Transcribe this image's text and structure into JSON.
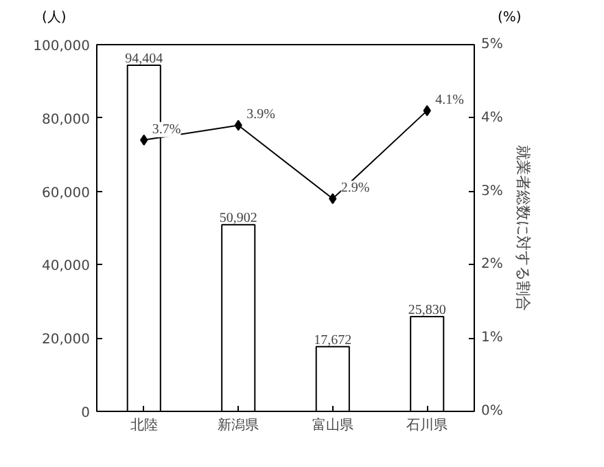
{
  "chart_data": {
    "type": "bar",
    "categories": [
      "北陸",
      "新潟県",
      "富山県",
      "石川県"
    ],
    "ylabel": "(人)",
    "y2label": "就業者総数に対する割合",
    "annotations": [
      "(%)"
    ],
    "series": [
      {
        "color": "#ffffff",
        "values": [
          94404,
          50902,
          17672,
          25830
        ],
        "value_labels": [
          "94,404",
          "50,902",
          "17,672",
          "25,830"
        ]
      },
      {
        "type": "line",
        "axis": "y2",
        "color": "#000000",
        "values": [
          3.7,
          3.9,
          2.9,
          4.1
        ],
        "value_labels": [
          "3.7%",
          "3.9%",
          "2.9%",
          "4.1%"
        ]
      }
    ],
    "ylim": [
      0,
      100000
    ],
    "yticks": [
      {
        "value": 0,
        "label": "0"
      },
      {
        "value": 20000,
        "label": "20,000"
      },
      {
        "value": 40000,
        "label": "40,000"
      },
      {
        "value": 60000,
        "label": "60,000"
      },
      {
        "value": 80000,
        "label": "80,000"
      },
      {
        "value": 100000,
        "label": "100,000"
      }
    ],
    "y2lim": [
      0,
      5
    ],
    "y2ticks": [
      {
        "value": 0,
        "label": "0%"
      },
      {
        "value": 1,
        "label": "1%"
      },
      {
        "value": 2,
        "label": "2%"
      },
      {
        "value": 3,
        "label": "3%"
      },
      {
        "value": 4,
        "label": "4%"
      },
      {
        "value": 5,
        "label": "5%"
      }
    ],
    "marker": "diamond",
    "line_style": "solid",
    "grid": false
  }
}
